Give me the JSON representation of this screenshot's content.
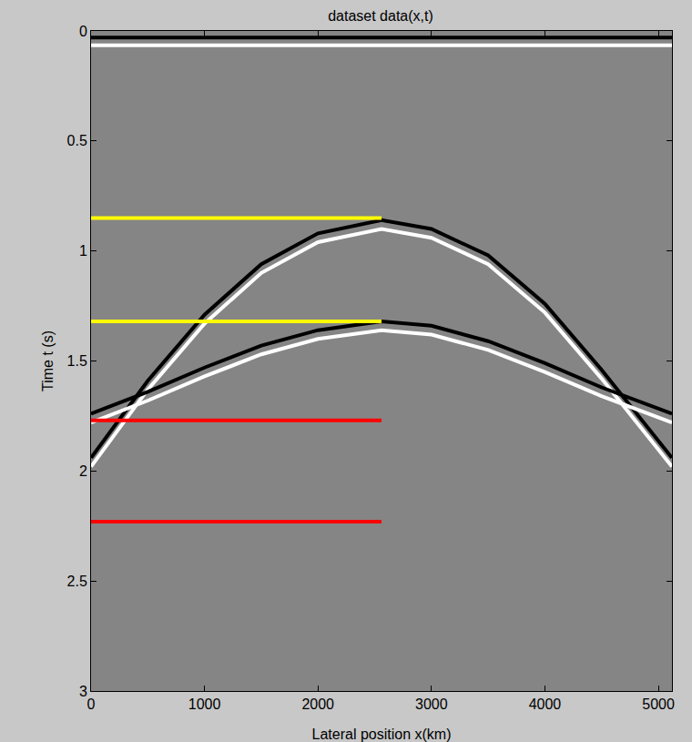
{
  "chart_data": {
    "type": "line",
    "title": "dataset data(x,t)",
    "x_label": "Lateral position x(km)",
    "y_label": "Time t (s)",
    "xlim": [
      0,
      5120
    ],
    "ylim": [
      3,
      0
    ],
    "xticks": [
      0,
      1000,
      2000,
      3000,
      4000,
      5000
    ],
    "yticks": [
      0,
      0.5,
      1,
      1.5,
      2,
      2.5,
      3
    ],
    "grid": false,
    "series": [
      {
        "color": "#000000",
        "line_style": "solid",
        "x": [
          0,
          5120
        ],
        "values": [
          0.03,
          0.03
        ]
      },
      {
        "color": "#ffffff",
        "line_style": "solid",
        "x": [
          0,
          5120
        ],
        "values": [
          0.065,
          0.065
        ]
      },
      {
        "color": "#000000",
        "line_style": "solid",
        "x": [
          0,
          500,
          1000,
          1500,
          2000,
          2560,
          3000,
          3500,
          4000,
          4500,
          5120
        ],
        "values": [
          1.94,
          1.59,
          1.29,
          1.06,
          0.92,
          0.86,
          0.9,
          1.02,
          1.24,
          1.54,
          1.94
        ]
      },
      {
        "color": "#ffffff",
        "line_style": "solid",
        "x": [
          0,
          500,
          1000,
          1500,
          2000,
          2560,
          3000,
          3500,
          4000,
          4500,
          5120
        ],
        "values": [
          1.98,
          1.63,
          1.33,
          1.1,
          0.96,
          0.9,
          0.94,
          1.06,
          1.28,
          1.58,
          1.98
        ]
      },
      {
        "color": "#000000",
        "line_style": "solid",
        "x": [
          0,
          500,
          1000,
          1500,
          2000,
          2560,
          3000,
          3500,
          4000,
          4500,
          5120
        ],
        "values": [
          1.74,
          1.64,
          1.53,
          1.43,
          1.36,
          1.32,
          1.34,
          1.41,
          1.51,
          1.62,
          1.74
        ]
      },
      {
        "color": "#ffffff",
        "line_style": "solid",
        "x": [
          0,
          500,
          1000,
          1500,
          2000,
          2560,
          3000,
          3500,
          4000,
          4500,
          5120
        ],
        "values": [
          1.78,
          1.68,
          1.57,
          1.47,
          1.4,
          1.36,
          1.38,
          1.45,
          1.55,
          1.66,
          1.78
        ]
      },
      {
        "color": "#ffff00",
        "line_style": "solid",
        "x": [
          0,
          2560
        ],
        "values": [
          0.85,
          0.85
        ]
      },
      {
        "color": "#ffff00",
        "line_style": "solid",
        "x": [
          0,
          2560
        ],
        "values": [
          1.32,
          1.32
        ]
      },
      {
        "color": "#ff0000",
        "line_style": "solid",
        "x": [
          0,
          2560
        ],
        "values": [
          1.77,
          1.77
        ]
      },
      {
        "color": "#ff0000",
        "line_style": "solid",
        "x": [
          0,
          2560
        ],
        "values": [
          2.23,
          2.23
        ]
      }
    ]
  }
}
